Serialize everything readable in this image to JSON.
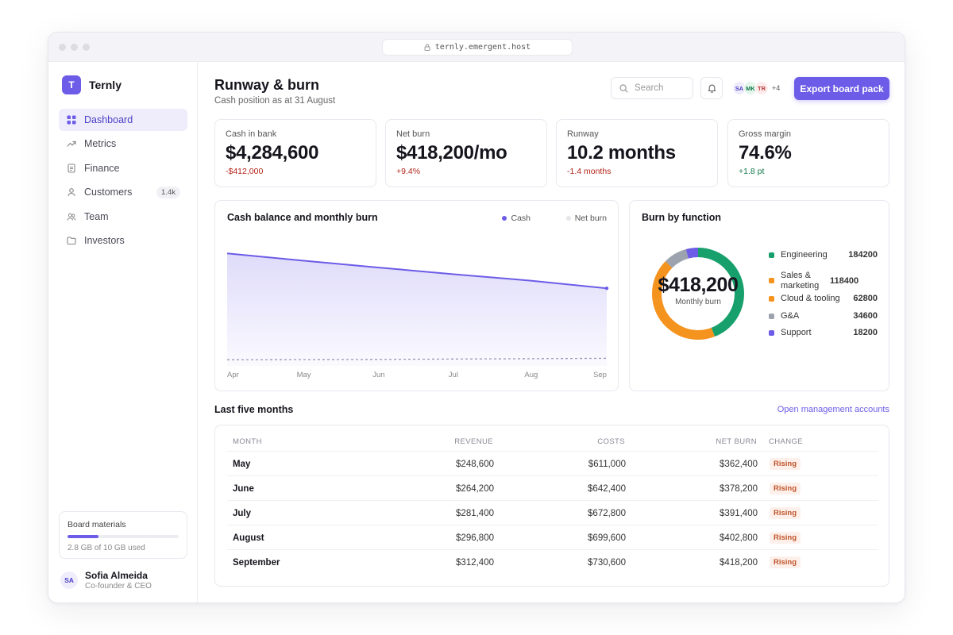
{
  "browser": {
    "url": "ternly.emergent.host"
  },
  "brand": {
    "initial": "T",
    "name": "Ternly"
  },
  "nav": [
    {
      "label": "Dashboard",
      "icon": "grid-icon",
      "active": true
    },
    {
      "label": "Metrics",
      "icon": "trend-icon"
    },
    {
      "label": "Finance",
      "icon": "document-icon"
    },
    {
      "label": "Customers",
      "icon": "user-icon",
      "badge": "1.4k"
    },
    {
      "label": "Team",
      "icon": "users-icon"
    },
    {
      "label": "Investors",
      "icon": "folder-icon"
    }
  ],
  "storage": {
    "title": "Board materials",
    "used_fraction": 0.28,
    "text": "2.8 GB of 10 GB used"
  },
  "user": {
    "initials": "SA",
    "name": "Sofia Almeida",
    "role": "Co-founder & CEO"
  },
  "header": {
    "title": "Runway & burn",
    "subtitle": "Cash position as at 31 August",
    "search_placeholder": "Search",
    "avatars": [
      {
        "initials": "SA",
        "bg": "#efedfc",
        "fg": "#4b3fc6"
      },
      {
        "initials": "MK",
        "bg": "#e4f5ec",
        "fg": "#147a4a"
      },
      {
        "initials": "TR",
        "bg": "#fdecec",
        "fg": "#b83a3a"
      }
    ],
    "avatars_more": "+4",
    "export_label": "Export board pack"
  },
  "kpis": [
    {
      "label": "Cash in bank",
      "value": "$4,284,600",
      "delta": "-$412,000",
      "delta_color": "#b42318"
    },
    {
      "label": "Net burn",
      "value": "$418,200/mo",
      "delta": "+9.4%",
      "delta_color": "#b42318"
    },
    {
      "label": "Runway",
      "value": "10.2 months",
      "delta": "-1.4 months",
      "delta_color": "#b42318"
    },
    {
      "label": "Gross margin",
      "value": "74.6%",
      "delta": "+1.8 pt",
      "delta_color": "#147a4a"
    }
  ],
  "chart_data": [
    {
      "type": "area",
      "title": "Cash balance and monthly burn",
      "x": [
        "Apr",
        "May",
        "Jun",
        "Jul",
        "Aug",
        "Sep"
      ],
      "series": [
        {
          "name": "Cash",
          "values": [
            6200000,
            5800000,
            5420000,
            5050000,
            4700000,
            4280000
          ],
          "color": "#6c5ce7"
        },
        {
          "name": "Net burn",
          "values": [
            340000,
            350000,
            360000,
            380000,
            400000,
            418000
          ],
          "color": "#9a96b8"
        }
      ],
      "ylim": [
        0,
        7000000
      ],
      "legend": "top-right",
      "grid": false
    },
    {
      "type": "pie",
      "title": "Burn by function",
      "center_value": "$418,200",
      "center_label": "Monthly burn",
      "slices": [
        {
          "label": "Engineering",
          "value": 184200,
          "display": "184200",
          "color": "#17a06b"
        },
        {
          "label": "Sales & marketing",
          "value": 118400,
          "display": "118400",
          "color": "#f5931f"
        },
        {
          "label": "Cloud & tooling",
          "value": 62800,
          "display": "62800",
          "color": "#f5931f"
        },
        {
          "label": "G&A",
          "value": 34600,
          "display": "34600",
          "color": "#9ca3af"
        },
        {
          "label": "Support",
          "value": 18200,
          "display": "18200",
          "color": "#6c5ce7"
        }
      ]
    }
  ],
  "table": {
    "title": "Last five months",
    "link": "Open management accounts",
    "columns": [
      "MONTH",
      "REVENUE",
      "COSTS",
      "NET BURN",
      "CHANGE"
    ],
    "rows": [
      {
        "month": "May",
        "revenue": "$248,600",
        "costs": "$611,000",
        "net_burn": "$362,400",
        "change": "Rising"
      },
      {
        "month": "June",
        "revenue": "$264,200",
        "costs": "$642,400",
        "net_burn": "$378,200",
        "change": "Rising"
      },
      {
        "month": "July",
        "revenue": "$281,400",
        "costs": "$672,800",
        "net_burn": "$391,400",
        "change": "Rising"
      },
      {
        "month": "August",
        "revenue": "$296,800",
        "costs": "$699,600",
        "net_burn": "$402,800",
        "change": "Rising"
      },
      {
        "month": "September",
        "revenue": "$312,400",
        "costs": "$730,600",
        "net_burn": "$418,200",
        "change": "Rising"
      }
    ]
  }
}
